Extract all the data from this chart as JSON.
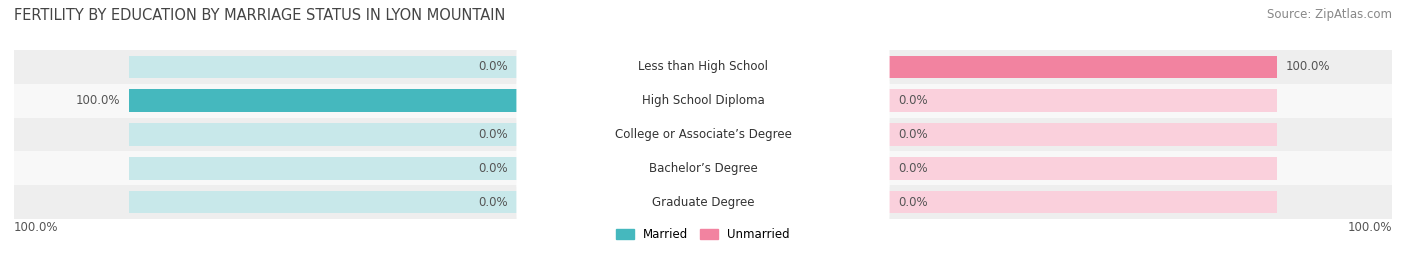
{
  "title": "FERTILITY BY EDUCATION BY MARRIAGE STATUS IN LYON MOUNTAIN",
  "source": "Source: ZipAtlas.com",
  "categories": [
    "Less than High School",
    "High School Diploma",
    "College or Associate’s Degree",
    "Bachelor’s Degree",
    "Graduate Degree"
  ],
  "married_values": [
    0.0,
    100.0,
    0.0,
    0.0,
    0.0
  ],
  "unmarried_values": [
    100.0,
    0.0,
    0.0,
    0.0,
    0.0
  ],
  "married_color": "#45B8BE",
  "unmarried_color": "#F283A0",
  "bar_background_married": "#C8E8EA",
  "bar_background_unmarried": "#FAD0DC",
  "row_bg_odd": "#EEEEEE",
  "row_bg_even": "#F8F8F8",
  "label_bg": "#FFFFFF",
  "title_color": "#444444",
  "source_color": "#888888",
  "value_color": "#555555",
  "title_fontsize": 10.5,
  "source_fontsize": 8.5,
  "label_fontsize": 8.5,
  "value_fontsize": 8.5,
  "max_value": 100.0,
  "figsize": [
    14.06,
    2.69
  ],
  "dpi": 100
}
